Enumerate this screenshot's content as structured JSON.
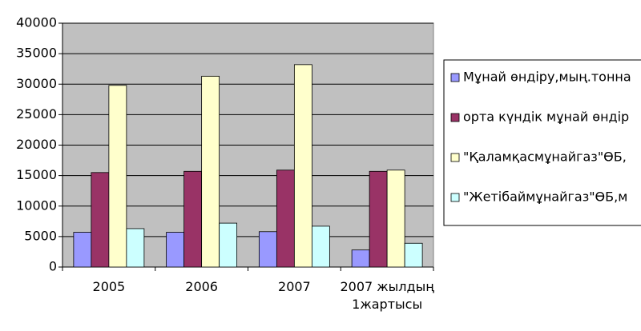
{
  "chart_data": {
    "type": "bar",
    "categories": [
      "2005",
      "2006",
      "2007",
      "2007 жылдың 1жартысы"
    ],
    "series": [
      {
        "name": "Мұнай өндіру,мың.тонна",
        "color": "#9999ff",
        "values": [
          5700,
          5700,
          5800,
          2800
        ]
      },
      {
        "name": "орта күндік мұнай өндір",
        "color": "#993366",
        "values": [
          15500,
          15700,
          15900,
          15700
        ]
      },
      {
        "name": "\"Қаламқасмұнайгаз\"ӨБ,",
        "color": "#ffffcc",
        "values": [
          29800,
          31300,
          33200,
          15900
        ]
      },
      {
        "name": "\"Жетібаймұнайгаз\"ӨБ,м",
        "color": "#ccffff",
        "values": [
          6300,
          7200,
          6700,
          3900
        ]
      }
    ],
    "ylim": [
      0,
      40000
    ],
    "yticks": [
      0,
      5000,
      10000,
      15000,
      20000,
      25000,
      30000,
      35000,
      40000
    ],
    "grid": true,
    "legend": "right",
    "plot_background": "#c0c0c0"
  }
}
